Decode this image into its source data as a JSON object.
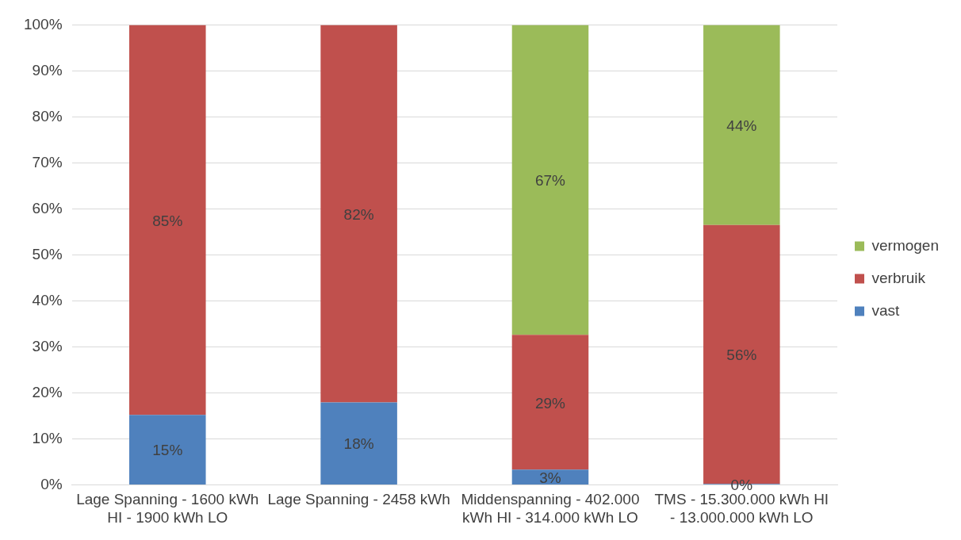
{
  "chart_data": {
    "type": "bar",
    "stacked": true,
    "categories": [
      "Lage Spanning - 1600 kWh HI - 1900 kWh LO",
      "Lage Spanning - 2458 kWh",
      "Middenspanning - 402.000 kWh HI - 314.000 kWh LO",
      "TMS - 15.300.000 kWh HI - 13.000.000 kWh LO"
    ],
    "series": [
      {
        "name": "vast",
        "color": "#4f81bd",
        "values": [
          15.2,
          17.9,
          3.3,
          0.2
        ],
        "value_labels": [
          "15%",
          "18%",
          "3%",
          "0%"
        ]
      },
      {
        "name": "verbruik",
        "color": "#c0504d",
        "values": [
          84.8,
          82.1,
          29.3,
          56.3
        ],
        "value_labels": [
          "85%",
          "82%",
          "29%",
          "56%"
        ]
      },
      {
        "name": "vermogen",
        "color": "#9bbb59",
        "values": [
          null,
          null,
          67.4,
          43.5
        ],
        "value_labels": [
          null,
          null,
          "67%",
          "44%"
        ]
      }
    ],
    "ylim": [
      0,
      100
    ],
    "yticks": [
      {
        "value": 0,
        "label": "0%"
      },
      {
        "value": 10,
        "label": "10%"
      },
      {
        "value": 20,
        "label": "20%"
      },
      {
        "value": 30,
        "label": "30%"
      },
      {
        "value": 40,
        "label": "40%"
      },
      {
        "value": 50,
        "label": "50%"
      },
      {
        "value": 60,
        "label": "60%"
      },
      {
        "value": 70,
        "label": "70%"
      },
      {
        "value": 80,
        "label": "80%"
      },
      {
        "value": 90,
        "label": "90%"
      },
      {
        "value": 100,
        "label": "100%"
      }
    ],
    "grid": "y",
    "legend": "right"
  }
}
